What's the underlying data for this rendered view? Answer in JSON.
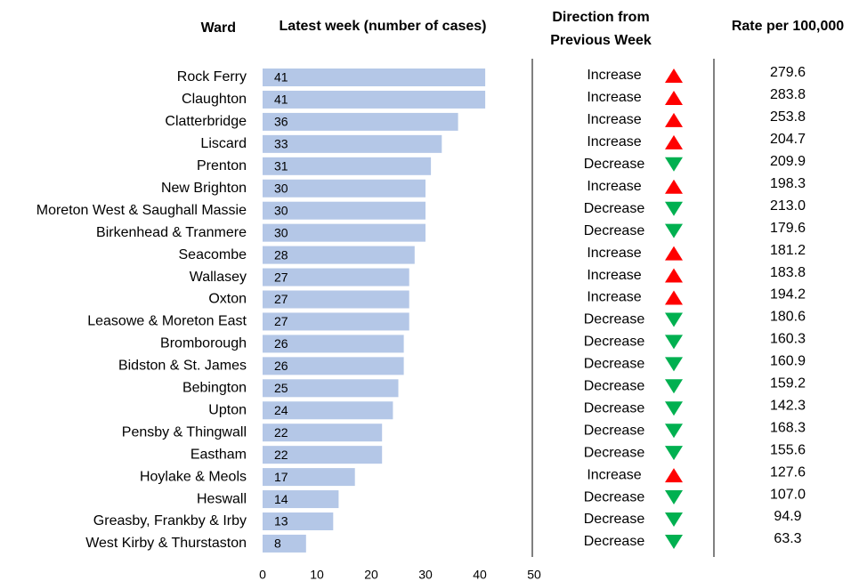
{
  "chart_data": {
    "type": "bar",
    "orientation": "horizontal",
    "headers": {
      "ward": "Ward",
      "cases": "Latest week (number of cases)",
      "direction": "Direction from Previous Week",
      "rate": "Rate per 100,000"
    },
    "categories": [
      "Rock Ferry",
      "Claughton",
      "Clatterbridge",
      "Liscard",
      "Prenton",
      "New Brighton",
      "Moreton West & Saughall Massie",
      "Birkenhead & Tranmere",
      "Seacombe",
      "Wallasey",
      "Oxton",
      "Leasowe & Moreton East",
      "Bromborough",
      "Bidston & St. James",
      "Bebington",
      "Upton",
      "Pensby & Thingwall",
      "Eastham",
      "Hoylake & Meols",
      "Heswall",
      "Greasby, Frankby & Irby",
      "West Kirby & Thurstaston"
    ],
    "values": [
      41,
      41,
      36,
      33,
      31,
      30,
      30,
      30,
      28,
      27,
      27,
      27,
      26,
      26,
      25,
      24,
      22,
      22,
      17,
      14,
      13,
      8
    ],
    "color": "#b4c7e7",
    "directions": [
      "Increase",
      "Increase",
      "Increase",
      "Increase",
      "Decrease",
      "Increase",
      "Decrease",
      "Decrease",
      "Increase",
      "Increase",
      "Increase",
      "Decrease",
      "Decrease",
      "Decrease",
      "Decrease",
      "Decrease",
      "Decrease",
      "Decrease",
      "Increase",
      "Decrease",
      "Decrease",
      "Decrease"
    ],
    "rates": [
      "279.6",
      "283.8",
      "253.8",
      "204.7",
      "209.9",
      "198.3",
      "213.0",
      "179.6",
      "181.2",
      "183.8",
      "194.2",
      "180.6",
      "160.3",
      "160.9",
      "159.2",
      "142.3",
      "168.3",
      "155.6",
      "127.6",
      "107.0",
      "94.9",
      "63.3"
    ],
    "increase_color": "#ff0000",
    "decrease_color": "#00b050",
    "xlim": [
      0,
      50
    ],
    "xticks": [
      0,
      10,
      20,
      30,
      40,
      50
    ]
  }
}
